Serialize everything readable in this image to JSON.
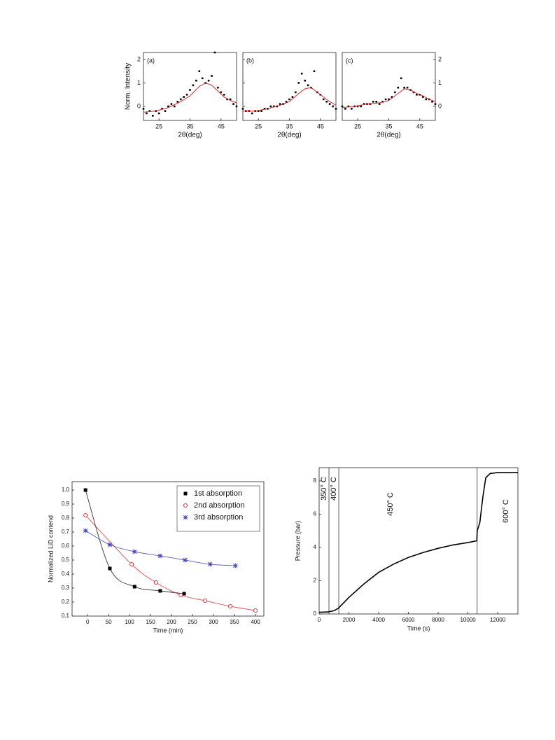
{
  "chart_data": [
    {
      "type": "scatter",
      "panel_label": "(a)",
      "xlabel": "2θ(deg)",
      "ylabel": "Norm. Intensity",
      "ytick_side": "left",
      "xlim": [
        20,
        50
      ],
      "ylim": [
        -0.6,
        2.3
      ],
      "xticks": [
        25,
        35,
        45
      ],
      "yticks": [
        0,
        1,
        2
      ],
      "series": [
        {
          "color": "#000000",
          "marker": "dot",
          "x": [
            20,
            21,
            22,
            23,
            24,
            25,
            26,
            27,
            28,
            29,
            30,
            31,
            32,
            33,
            34,
            35,
            36,
            37,
            38,
            39,
            40,
            41,
            42,
            43,
            44,
            45,
            46,
            47,
            48,
            49,
            50
          ],
          "values": [
            -0.1,
            -0.3,
            -0.2,
            -0.4,
            -0.2,
            -0.3,
            -0.1,
            -0.2,
            0.0,
            0.1,
            0.0,
            0.2,
            0.3,
            0.4,
            0.5,
            0.7,
            0.9,
            1.1,
            1.5,
            1.2,
            1.0,
            1.1,
            1.3,
            2.3,
            0.8,
            0.6,
            0.5,
            0.3,
            0.3,
            0.1,
            0.0
          ]
        },
        {
          "color": "#d62728",
          "marker": "line",
          "x": [
            20,
            24,
            28,
            32,
            35,
            38,
            40,
            42,
            44,
            46,
            48,
            50
          ],
          "values": [
            -0.25,
            -0.2,
            -0.05,
            0.2,
            0.45,
            0.85,
            1.0,
            0.9,
            0.65,
            0.4,
            0.25,
            0.15
          ]
        }
      ]
    },
    {
      "type": "scatter",
      "panel_label": "(b)",
      "xlabel": "2θ(deg)",
      "ytick_side": "none",
      "xlim": [
        20,
        50
      ],
      "ylim": [
        -0.6,
        2.3
      ],
      "xticks": [
        25,
        35,
        45
      ],
      "yticks": [
        0,
        1,
        2
      ],
      "series": [
        {
          "color": "#000000",
          "marker": "dot",
          "x": [
            20,
            21,
            22,
            23,
            24,
            25,
            26,
            27,
            28,
            29,
            30,
            31,
            32,
            33,
            34,
            35,
            36,
            37,
            38,
            39,
            40,
            41,
            42,
            43,
            44,
            45,
            46,
            47,
            48,
            49,
            50
          ],
          "values": [
            -0.1,
            -0.2,
            -0.2,
            -0.3,
            -0.2,
            -0.2,
            -0.2,
            -0.1,
            -0.1,
            0.0,
            0.0,
            0.0,
            0.1,
            0.1,
            0.2,
            0.3,
            0.4,
            0.6,
            1.0,
            1.4,
            1.1,
            0.9,
            0.8,
            1.5,
            0.6,
            0.5,
            0.3,
            0.2,
            0.1,
            0.0,
            -0.1
          ]
        },
        {
          "color": "#d62728",
          "marker": "line",
          "x": [
            20,
            24,
            28,
            32,
            35,
            38,
            40,
            42,
            44,
            46,
            48,
            50
          ],
          "values": [
            -0.2,
            -0.2,
            -0.1,
            0.05,
            0.2,
            0.55,
            0.75,
            0.8,
            0.6,
            0.4,
            0.2,
            0.05
          ]
        }
      ]
    },
    {
      "type": "scatter",
      "panel_label": "(c)",
      "xlabel": "2θ(deg)",
      "ytick_side": "right",
      "xlim": [
        20,
        50
      ],
      "ylim": [
        -0.6,
        2.3
      ],
      "xticks": [
        25,
        35,
        45
      ],
      "yticks": [
        0,
        1,
        2
      ],
      "series": [
        {
          "color": "#000000",
          "marker": "dot",
          "x": [
            20,
            21,
            22,
            23,
            24,
            25,
            26,
            27,
            28,
            29,
            30,
            31,
            32,
            33,
            34,
            35,
            36,
            37,
            38,
            39,
            40,
            41,
            42,
            43,
            44,
            45,
            46,
            47,
            48,
            49,
            50
          ],
          "values": [
            0.0,
            -0.1,
            0.0,
            -0.1,
            0.0,
            0.0,
            0.0,
            0.1,
            0.1,
            0.1,
            0.2,
            0.2,
            0.1,
            0.2,
            0.3,
            0.3,
            0.4,
            0.6,
            0.8,
            1.2,
            0.8,
            0.8,
            0.7,
            0.6,
            0.5,
            0.5,
            0.4,
            0.3,
            0.3,
            0.2,
            0.1
          ]
        },
        {
          "color": "#d62728",
          "marker": "line",
          "x": [
            20,
            24,
            28,
            32,
            35,
            38,
            40,
            42,
            44,
            46,
            48,
            50
          ],
          "values": [
            -0.05,
            0.0,
            0.1,
            0.15,
            0.25,
            0.55,
            0.75,
            0.7,
            0.55,
            0.45,
            0.3,
            0.2
          ]
        }
      ]
    },
    {
      "type": "scatter",
      "xlabel": "Time (min)",
      "ylabel": "Normalized LiD contend",
      "ytick_side": "left",
      "legend": "upper right",
      "smooth": true,
      "xlim": [
        -37,
        420
      ],
      "ylim": [
        0.1,
        1.06
      ],
      "xticks": [
        0,
        50,
        100,
        150,
        200,
        250,
        300,
        350,
        400
      ],
      "yticks": [
        0.1,
        0.2,
        0.3,
        0.4,
        0.5,
        0.6,
        0.7,
        0.8,
        0.9,
        {
          "value": 1,
          "label": "1.0"
        }
      ],
      "series": [
        {
          "name": "1st absorption",
          "color": "#000000",
          "marker": "square",
          "x": [
            -5,
            53,
            112,
            173,
            230
          ],
          "values": [
            1.0,
            0.44,
            0.31,
            0.28,
            0.26
          ]
        },
        {
          "name": "2nd absorption",
          "color": "#d62728",
          "marker": "circle",
          "x": [
            -5,
            105,
            163,
            222,
            280,
            340,
            400
          ],
          "values": [
            0.82,
            0.47,
            0.34,
            0.25,
            0.21,
            0.17,
            0.14
          ]
        },
        {
          "name": "3rd absorption",
          "color": "#3a3ab0",
          "marker": "star",
          "x": [
            -5,
            53,
            112,
            173,
            232,
            292,
            352
          ],
          "values": [
            0.71,
            0.61,
            0.56,
            0.53,
            0.5,
            0.47,
            0.46
          ]
        }
      ]
    },
    {
      "type": "line",
      "xlabel": "Time (s)",
      "ylabel": "Pressure (bar)",
      "ytick_side": "left",
      "xlim": [
        0,
        13360
      ],
      "ylim": [
        0,
        8.8
      ],
      "xticks": [
        0,
        2000,
        4000,
        6000,
        8000,
        10000,
        12000
      ],
      "yticks": [
        0,
        2,
        4,
        6,
        8
      ],
      "vlines": [
        660,
        1320,
        10620
      ],
      "annotations": [
        "350° C",
        "400° C",
        "450° C",
        "600° C"
      ],
      "series": [
        {
          "color": "#000000",
          "x": [
            0,
            600,
            1000,
            1300,
            2000,
            3000,
            4000,
            5000,
            6000,
            7000,
            8000,
            9000,
            10000,
            10600,
            10620,
            10800,
            11000,
            11200,
            11500,
            12000,
            13360
          ],
          "values": [
            0.1,
            0.12,
            0.2,
            0.35,
            1.0,
            1.8,
            2.5,
            3.0,
            3.4,
            3.7,
            3.95,
            4.15,
            4.3,
            4.4,
            5.0,
            5.5,
            7.0,
            8.2,
            8.45,
            8.5,
            8.5
          ]
        }
      ]
    }
  ]
}
